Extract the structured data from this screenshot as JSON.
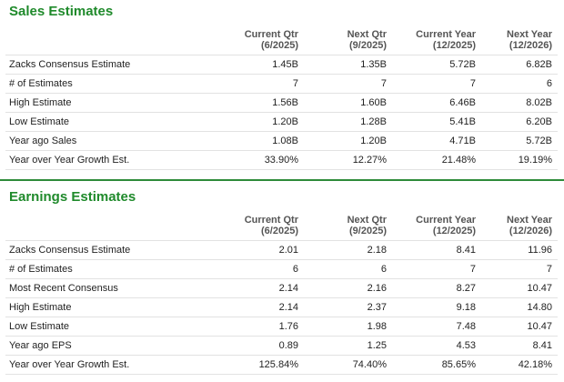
{
  "sales": {
    "title": "Sales Estimates",
    "headers": [
      {
        "line1": "Current Qtr",
        "line2": "(6/2025)"
      },
      {
        "line1": "Next Qtr",
        "line2": "(9/2025)"
      },
      {
        "line1": "Current Year",
        "line2": "(12/2025)"
      },
      {
        "line1": "Next Year",
        "line2": "(12/2026)"
      }
    ],
    "rows": [
      {
        "label": "Zacks Consensus Estimate",
        "values": [
          "1.45B",
          "1.35B",
          "5.72B",
          "6.82B"
        ]
      },
      {
        "label": "# of Estimates",
        "values": [
          "7",
          "7",
          "7",
          "6"
        ]
      },
      {
        "label": "High Estimate",
        "values": [
          "1.56B",
          "1.60B",
          "6.46B",
          "8.02B"
        ]
      },
      {
        "label": "Low Estimate",
        "values": [
          "1.20B",
          "1.28B",
          "5.41B",
          "6.20B"
        ]
      },
      {
        "label": "Year ago Sales",
        "values": [
          "1.08B",
          "1.20B",
          "4.71B",
          "5.72B"
        ]
      },
      {
        "label": "Year over Year Growth Est.",
        "values": [
          "33.90%",
          "12.27%",
          "21.48%",
          "19.19%"
        ]
      }
    ]
  },
  "earnings": {
    "title": "Earnings Estimates",
    "headers": [
      {
        "line1": "Current Qtr",
        "line2": "(6/2025)"
      },
      {
        "line1": "Next Qtr",
        "line2": "(9/2025)"
      },
      {
        "line1": "Current Year",
        "line2": "(12/2025)"
      },
      {
        "line1": "Next Year",
        "line2": "(12/2026)"
      }
    ],
    "rows": [
      {
        "label": "Zacks Consensus Estimate",
        "values": [
          "2.01",
          "2.18",
          "8.41",
          "11.96"
        ]
      },
      {
        "label": "# of Estimates",
        "values": [
          "6",
          "6",
          "7",
          "7"
        ]
      },
      {
        "label": "Most Recent Consensus",
        "values": [
          "2.14",
          "2.16",
          "8.27",
          "10.47"
        ]
      },
      {
        "label": "High Estimate",
        "values": [
          "2.14",
          "2.37",
          "9.18",
          "14.80"
        ]
      },
      {
        "label": "Low Estimate",
        "values": [
          "1.76",
          "1.98",
          "7.48",
          "10.47"
        ]
      },
      {
        "label": "Year ago EPS",
        "values": [
          "0.89",
          "1.25",
          "4.53",
          "8.41"
        ]
      },
      {
        "label": "Year over Year Growth Est.",
        "values": [
          "125.84%",
          "74.40%",
          "85.65%",
          "42.18%"
        ]
      }
    ]
  },
  "colors": {
    "title_green": "#1f8a2b",
    "rule_green": "#2e8b3a"
  }
}
